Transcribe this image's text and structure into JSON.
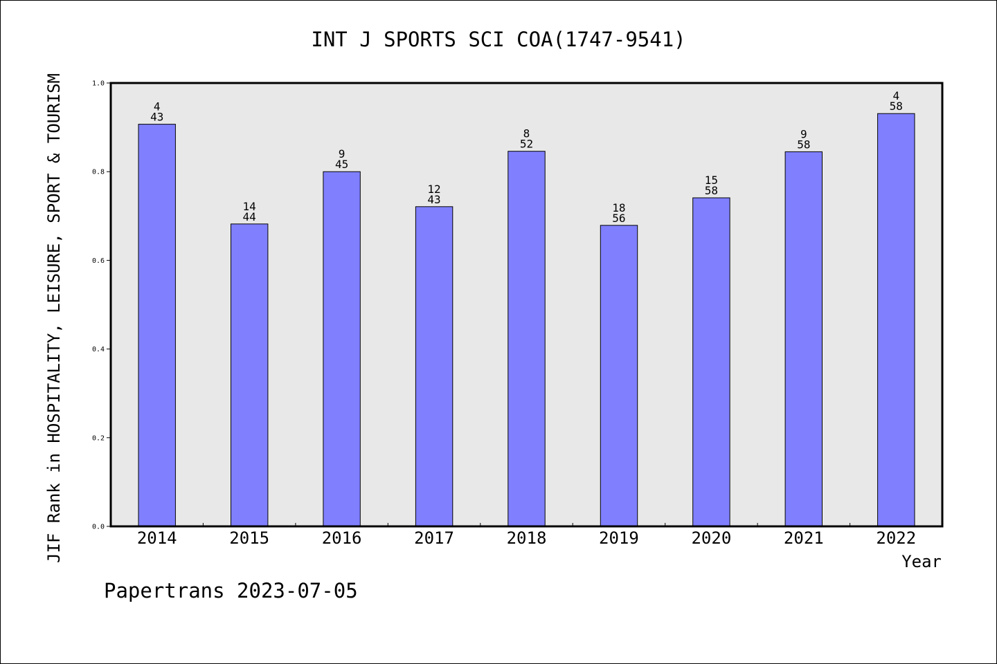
{
  "chart_data": {
    "type": "bar",
    "title": "INT J SPORTS SCI COA(1747-9541)",
    "xlabel": "Year",
    "ylabel": "JIF Rank in HOSPITALITY, LEISURE, SPORT & TOURISM",
    "ylim": [
      0,
      1.0
    ],
    "yticks": [
      "0.0",
      "0.2",
      "0.4",
      "0.6",
      "0.8",
      "1.0"
    ],
    "categories": [
      "2014",
      "2015",
      "2016",
      "2017",
      "2018",
      "2019",
      "2020",
      "2021",
      "2022"
    ],
    "values": [
      0.907,
      0.682,
      0.8,
      0.721,
      0.846,
      0.679,
      0.741,
      0.845,
      0.931
    ],
    "rank_labels": [
      "4",
      "14",
      "9",
      "12",
      "8",
      "18",
      "15",
      "9",
      "4"
    ],
    "total_labels": [
      "43",
      "44",
      "45",
      "43",
      "52",
      "56",
      "58",
      "58",
      "58"
    ],
    "grid": false,
    "legend": "none",
    "colors": {
      "bar": "#8080ff",
      "plot_bg": "#e8e8e8",
      "axis": "#000000"
    }
  },
  "footer": {
    "credit": "Papertrans 2023-07-05"
  }
}
